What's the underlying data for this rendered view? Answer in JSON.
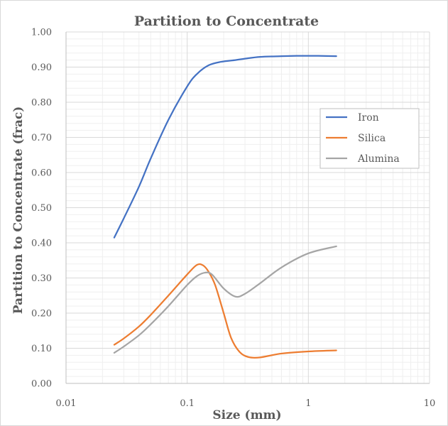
{
  "chart_data": {
    "type": "line",
    "title": "Partition to Concentrate",
    "xlabel": "Size (mm)",
    "ylabel": "Partition to Concentrate (frac)",
    "xscale": "log",
    "xlim": [
      0.01,
      10
    ],
    "ylim": [
      0,
      1
    ],
    "x_ticks": [
      0.01,
      0.1,
      1,
      10
    ],
    "x_tick_labels": [
      "0.01",
      "0.1",
      "1",
      "10"
    ],
    "y_ticks": [
      0,
      0.1,
      0.2,
      0.3,
      0.4,
      0.5,
      0.6,
      0.7,
      0.8,
      0.9,
      1.0
    ],
    "y_tick_labels": [
      "0.00",
      "0.10",
      "0.20",
      "0.30",
      "0.40",
      "0.50",
      "0.60",
      "0.70",
      "0.80",
      "0.90",
      "1.00"
    ],
    "grid": "major and minor",
    "legend_position": "right",
    "series": [
      {
        "name": "Iron",
        "color": "#4472c4",
        "x": [
          0.025,
          0.03,
          0.04,
          0.05,
          0.07,
          0.1,
          0.12,
          0.15,
          0.19,
          0.25,
          0.3,
          0.4,
          0.6,
          0.8,
          1.0,
          1.2,
          1.7
        ],
        "y": [
          0.415,
          0.47,
          0.56,
          0.64,
          0.75,
          0.845,
          0.88,
          0.905,
          0.915,
          0.92,
          0.924,
          0.929,
          0.931,
          0.932,
          0.932,
          0.932,
          0.931
        ]
      },
      {
        "name": "Silica",
        "color": "#ed7d31",
        "x": [
          0.025,
          0.03,
          0.04,
          0.05,
          0.07,
          0.1,
          0.12,
          0.135,
          0.15,
          0.17,
          0.2,
          0.23,
          0.27,
          0.32,
          0.4,
          0.6,
          1.0,
          1.7
        ],
        "y": [
          0.11,
          0.128,
          0.162,
          0.195,
          0.25,
          0.31,
          0.337,
          0.336,
          0.318,
          0.28,
          0.2,
          0.13,
          0.09,
          0.075,
          0.074,
          0.085,
          0.091,
          0.094
        ]
      },
      {
        "name": "Alumina",
        "color": "#a5a5a5",
        "x": [
          0.025,
          0.03,
          0.04,
          0.05,
          0.07,
          0.1,
          0.12,
          0.14,
          0.16,
          0.2,
          0.25,
          0.3,
          0.4,
          0.6,
          1.0,
          1.7
        ],
        "y": [
          0.087,
          0.105,
          0.137,
          0.168,
          0.22,
          0.28,
          0.305,
          0.315,
          0.31,
          0.27,
          0.247,
          0.255,
          0.285,
          0.33,
          0.37,
          0.39
        ]
      }
    ]
  }
}
